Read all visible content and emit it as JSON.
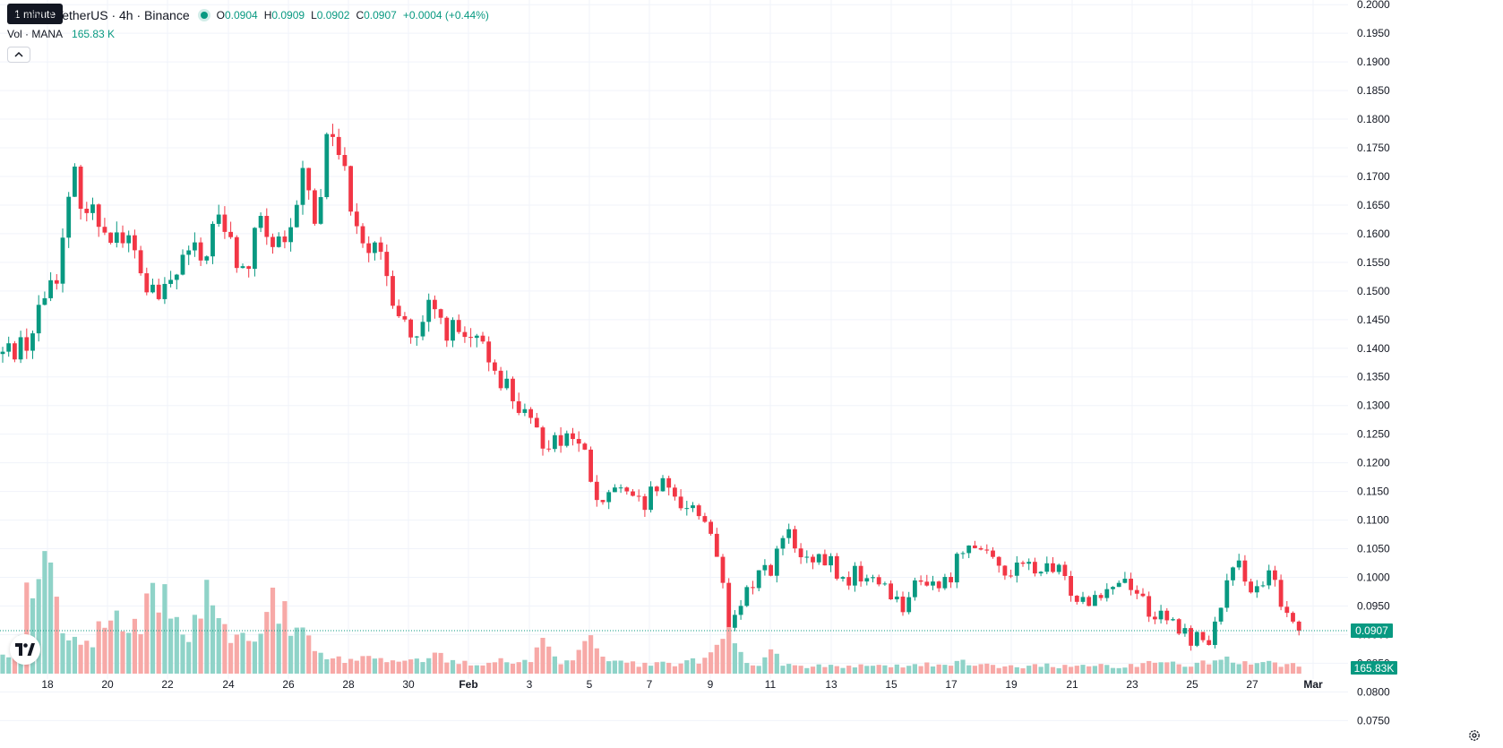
{
  "legend": {
    "title": "traland / TetherUS · 4h · Binance",
    "ohlc": [
      {
        "key": "O",
        "value": "0.0904"
      },
      {
        "key": "H",
        "value": "0.0909"
      },
      {
        "key": "L",
        "value": "0.0902"
      },
      {
        "key": "C",
        "value": "0.0907"
      }
    ],
    "change": "+0.0004 (+0.44%)",
    "volume_label": "Vol · MANA",
    "volume_value": "165.83 K"
  },
  "tooltip": "1 minute",
  "price_tag": "0.0907",
  "volume_tag": "165.83K",
  "icons": {
    "collapse": "chevron-up-icon",
    "logo": "tradingview-logo-icon",
    "settings": "gear-icon"
  },
  "colors": {
    "up": "#089981",
    "down": "#f23645",
    "up_volume": "#8fd3c8",
    "down_volume": "#f7a9a7",
    "grid": "#f0f3fa",
    "axis_text": "#131722"
  },
  "chart_data": {
    "type": "candlestick",
    "symbol": "MANA/USDT",
    "interval": "4h",
    "exchange": "Binance",
    "y_ticks": [
      "0.0750",
      "0.0800",
      "0.0850",
      "0.0900",
      "0.0950",
      "0.1000",
      "0.1050",
      "0.1100",
      "0.1150",
      "0.1200",
      "0.1250",
      "0.1300",
      "0.1350",
      "0.1400",
      "0.1450",
      "0.1500",
      "0.1550",
      "0.1600",
      "0.1650",
      "0.1700",
      "0.1750",
      "0.1800",
      "0.1850",
      "0.1900",
      "0.1950",
      "0.2000"
    ],
    "x_ticks": [
      "18",
      "20",
      "22",
      "24",
      "26",
      "28",
      "30",
      "Feb",
      "3",
      "5",
      "7",
      "9",
      "11",
      "13",
      "15",
      "17",
      "19",
      "21",
      "23",
      "25",
      "27",
      "Mar"
    ],
    "ylim": [
      0.0738,
      0.2005
    ],
    "last_price": 0.0907,
    "last_volume": 165830,
    "price_path": [
      [
        0,
        0.139
      ],
      [
        2,
        0.142
      ],
      [
        3,
        0.15
      ],
      [
        4,
        0.155
      ],
      [
        5,
        0.17
      ],
      [
        6,
        0.164
      ],
      [
        7,
        0.162
      ],
      [
        8,
        0.16
      ],
      [
        9,
        0.158
      ],
      [
        10,
        0.151
      ],
      [
        11,
        0.148
      ],
      [
        12,
        0.152
      ],
      [
        13,
        0.157
      ],
      [
        14,
        0.155
      ],
      [
        15,
        0.163
      ],
      [
        16,
        0.158
      ],
      [
        17,
        0.152
      ],
      [
        18,
        0.162
      ],
      [
        19,
        0.158
      ],
      [
        20,
        0.156
      ],
      [
        21,
        0.171
      ],
      [
        22,
        0.162
      ],
      [
        23,
        0.181
      ],
      [
        24,
        0.17
      ],
      [
        25,
        0.162
      ],
      [
        26,
        0.157
      ],
      [
        27,
        0.152
      ],
      [
        28,
        0.146
      ],
      [
        29,
        0.14
      ],
      [
        30,
        0.147
      ],
      [
        31,
        0.144
      ],
      [
        32,
        0.142
      ],
      [
        34,
        0.139
      ],
      [
        35,
        0.135
      ],
      [
        36,
        0.131
      ],
      [
        37,
        0.126
      ],
      [
        38,
        0.124
      ],
      [
        40,
        0.125
      ],
      [
        41,
        0.12
      ],
      [
        42,
        0.111
      ],
      [
        43,
        0.116
      ],
      [
        44,
        0.113
      ],
      [
        45,
        0.112
      ],
      [
        46,
        0.116
      ],
      [
        47,
        0.114
      ],
      [
        48,
        0.113
      ],
      [
        49,
        0.111
      ],
      [
        50,
        0.107
      ],
      [
        51,
        0.09
      ],
      [
        52,
        0.096
      ],
      [
        53,
        0.101
      ],
      [
        54,
        0.102
      ],
      [
        55,
        0.108
      ],
      [
        56,
        0.103
      ],
      [
        57,
        0.102
      ],
      [
        58,
        0.103
      ],
      [
        59,
        0.099
      ],
      [
        60,
        0.101
      ],
      [
        61,
        0.099
      ],
      [
        62,
        0.099
      ],
      [
        63,
        0.095
      ],
      [
        64,
        0.098
      ],
      [
        65,
        0.1
      ],
      [
        66,
        0.098
      ],
      [
        67,
        0.103
      ],
      [
        68,
        0.108
      ],
      [
        69,
        0.103
      ],
      [
        70,
        0.102
      ],
      [
        71,
        0.101
      ],
      [
        72,
        0.102
      ],
      [
        73,
        0.101
      ],
      [
        74,
        0.101
      ],
      [
        75,
        0.098
      ],
      [
        76,
        0.096
      ],
      [
        77,
        0.098
      ],
      [
        78,
        0.099
      ],
      [
        79,
        0.1
      ],
      [
        80,
        0.096
      ],
      [
        81,
        0.093
      ],
      [
        82,
        0.092
      ],
      [
        83,
        0.09
      ],
      [
        84,
        0.089
      ],
      [
        85,
        0.09
      ],
      [
        86,
        0.099
      ],
      [
        87,
        0.102
      ],
      [
        88,
        0.097
      ],
      [
        89,
        0.1
      ],
      [
        90,
        0.095
      ],
      [
        91,
        0.0907
      ]
    ],
    "volume_path": [
      [
        0,
        0.1
      ],
      [
        1,
        0.15
      ],
      [
        2,
        0.58
      ],
      [
        3,
        0.85
      ],
      [
        4,
        0.3
      ],
      [
        5,
        0.22
      ],
      [
        6,
        0.18
      ],
      [
        7,
        0.26
      ],
      [
        8,
        0.4
      ],
      [
        9,
        0.28
      ],
      [
        10,
        0.35
      ],
      [
        11,
        0.48
      ],
      [
        12,
        0.4
      ],
      [
        13,
        0.25
      ],
      [
        14,
        0.4
      ],
      [
        15,
        0.48
      ],
      [
        16,
        0.25
      ],
      [
        17,
        0.3
      ],
      [
        18,
        0.2
      ],
      [
        19,
        0.44
      ],
      [
        20,
        0.32
      ],
      [
        21,
        0.25
      ],
      [
        22,
        0.18
      ],
      [
        23,
        0.1
      ],
      [
        24,
        0.09
      ],
      [
        25,
        0.08
      ],
      [
        26,
        0.12
      ],
      [
        27,
        0.09
      ],
      [
        28,
        0.08
      ],
      [
        29,
        0.07
      ],
      [
        30,
        0.11
      ],
      [
        31,
        0.09
      ],
      [
        32,
        0.07
      ],
      [
        33,
        0.06
      ],
      [
        34,
        0.07
      ],
      [
        35,
        0.08
      ],
      [
        36,
        0.07
      ],
      [
        37,
        0.08
      ],
      [
        38,
        0.18
      ],
      [
        39,
        0.08
      ],
      [
        40,
        0.06
      ],
      [
        41,
        0.24
      ],
      [
        42,
        0.08
      ],
      [
        43,
        0.07
      ],
      [
        44,
        0.06
      ],
      [
        45,
        0.05
      ],
      [
        46,
        0.06
      ],
      [
        47,
        0.05
      ],
      [
        48,
        0.07
      ],
      [
        49,
        0.08
      ],
      [
        50,
        0.2
      ],
      [
        51,
        0.22
      ],
      [
        52,
        0.08
      ],
      [
        53,
        0.05
      ],
      [
        54,
        0.12
      ],
      [
        55,
        0.05
      ],
      [
        56,
        0.04
      ],
      [
        57,
        0.04
      ],
      [
        58,
        0.05
      ],
      [
        59,
        0.04
      ],
      [
        60,
        0.05
      ],
      [
        61,
        0.04
      ],
      [
        62,
        0.05
      ],
      [
        63,
        0.04
      ],
      [
        64,
        0.05
      ],
      [
        65,
        0.06
      ],
      [
        66,
        0.05
      ],
      [
        67,
        0.06
      ],
      [
        68,
        0.07
      ],
      [
        69,
        0.05
      ],
      [
        70,
        0.04
      ],
      [
        71,
        0.05
      ],
      [
        72,
        0.04
      ],
      [
        73,
        0.05
      ],
      [
        74,
        0.04
      ],
      [
        75,
        0.05
      ],
      [
        76,
        0.04
      ],
      [
        77,
        0.05
      ],
      [
        78,
        0.04
      ],
      [
        79,
        0.05
      ],
      [
        80,
        0.05
      ],
      [
        81,
        0.07
      ],
      [
        82,
        0.06
      ],
      [
        83,
        0.05
      ],
      [
        84,
        0.06
      ],
      [
        85,
        0.06
      ],
      [
        86,
        0.08
      ],
      [
        87,
        0.06
      ],
      [
        88,
        0.05
      ],
      [
        89,
        0.06
      ],
      [
        90,
        0.05
      ],
      [
        91,
        0.05
      ]
    ]
  }
}
